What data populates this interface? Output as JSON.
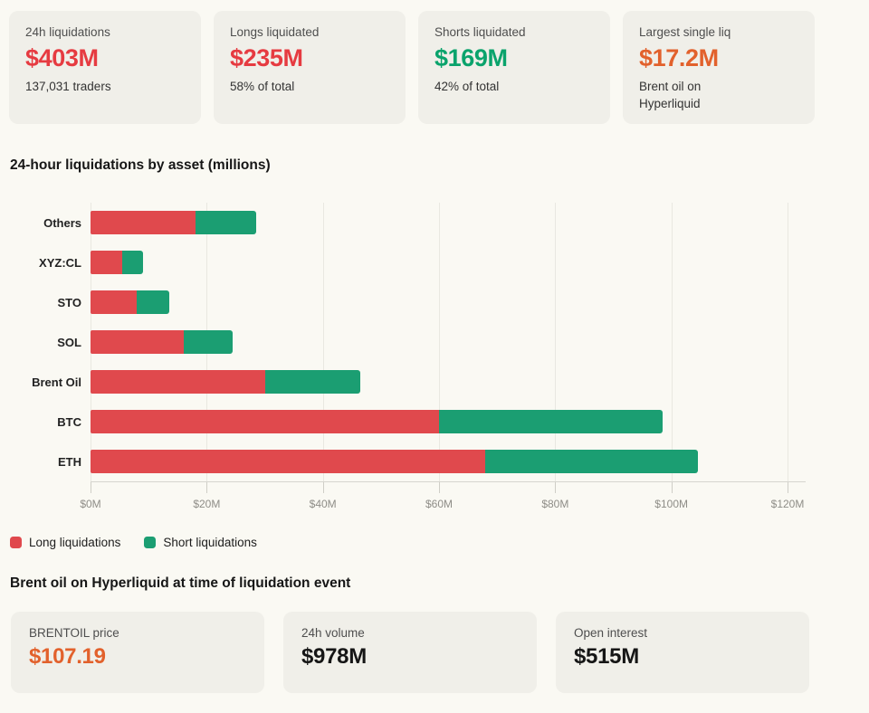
{
  "colors": {
    "long_red": "#e0494d",
    "short_green": "#1b9e72",
    "text_red": "#e63b41",
    "text_green": "#0aa36c",
    "text_orange": "#e2612c",
    "text_dark": "#161616",
    "card_bg": "#f0efe9",
    "page_bg": "#faf9f3"
  },
  "stats_top": [
    {
      "label": "24h liquidations",
      "value": "$403M",
      "value_class": "red",
      "sub": "137,031 traders"
    },
    {
      "label": "Longs liquidated",
      "value": "$235M",
      "value_class": "red",
      "sub": "58% of total"
    },
    {
      "label": "Shorts liquidated",
      "value": "$169M",
      "value_class": "green",
      "sub": "42% of total"
    },
    {
      "label": "Largest single liq",
      "value": "$17.2M",
      "value_class": "orange",
      "sub": "Brent oil on\nHyperliquid"
    }
  ],
  "chart_section": {
    "title": "24-hour liquidations by asset (millions)"
  },
  "chart_data": {
    "type": "bar",
    "orientation": "horizontal",
    "stacked": true,
    "title": "24-hour liquidations by asset (millions)",
    "categories": [
      "Others",
      "XYZ:CL",
      "STO",
      "SOL",
      "Brent Oil",
      "BTC",
      "ETH"
    ],
    "series": [
      {
        "name": "Long liquidations",
        "color": "#e0494d",
        "values": [
          18,
          5.5,
          8,
          16,
          30,
          60,
          68
        ]
      },
      {
        "name": "Short liquidations",
        "color": "#1b9e72",
        "values": [
          10.5,
          3.5,
          5.5,
          8.5,
          16.5,
          38.5,
          36.5
        ]
      }
    ],
    "totals": [
      28.5,
      9,
      13.5,
      24.5,
      46.5,
      98.5,
      104.5
    ],
    "xlim": [
      0,
      120
    ],
    "x_tick_values": [
      0,
      20,
      40,
      60,
      80,
      100,
      120
    ],
    "x_ticks": [
      "$0M",
      "$20M",
      "$40M",
      "$60M",
      "$80M",
      "$100M",
      "$120M"
    ],
    "grid": true,
    "legend_position": "bottom"
  },
  "bottom_section": {
    "title": "Brent oil on Hyperliquid at time of liquidation event"
  },
  "stats_bottom": [
    {
      "label": "BRENTOIL price",
      "value": "$107.19",
      "value_class": "orange"
    },
    {
      "label": "24h volume",
      "value": "$978M",
      "value_class": "dark"
    },
    {
      "label": "Open interest",
      "value": "$515M",
      "value_class": "dark"
    }
  ]
}
